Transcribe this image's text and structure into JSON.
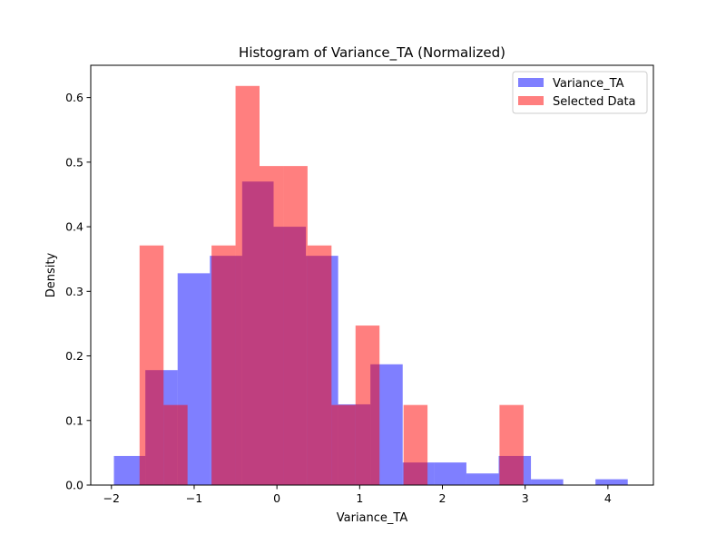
{
  "chart_data": {
    "type": "histogram",
    "title": "Histogram of Variance_TA (Normalized)",
    "xlabel": "Variance_TA",
    "ylabel": "Density",
    "xlim": [
      -2.25,
      4.55
    ],
    "ylim": [
      0,
      0.65
    ],
    "xticks": [
      -2,
      -1,
      0,
      1,
      2,
      3,
      4
    ],
    "yticks": [
      0.0,
      0.1,
      0.2,
      0.3,
      0.4,
      0.5,
      0.6
    ],
    "grid": false,
    "legend": "top-right",
    "series": [
      {
        "name": "Variance_TA",
        "color": "#0000ff",
        "opacity": 0.5,
        "bins": [
          {
            "x0": -1.97,
            "x1": -1.59,
            "value": 0.045
          },
          {
            "x0": -1.59,
            "x1": -1.2,
            "value": 0.178
          },
          {
            "x0": -1.2,
            "x1": -0.81,
            "value": 0.328
          },
          {
            "x0": -0.81,
            "x1": -0.42,
            "value": 0.355
          },
          {
            "x0": -0.42,
            "x1": -0.04,
            "value": 0.47
          },
          {
            "x0": -0.04,
            "x1": 0.35,
            "value": 0.4
          },
          {
            "x0": 0.35,
            "x1": 0.74,
            "value": 0.355
          },
          {
            "x0": 0.74,
            "x1": 1.13,
            "value": 0.125
          },
          {
            "x0": 1.13,
            "x1": 1.52,
            "value": 0.187
          },
          {
            "x0": 1.52,
            "x1": 1.9,
            "value": 0.035
          },
          {
            "x0": 1.9,
            "x1": 2.29,
            "value": 0.035
          },
          {
            "x0": 2.29,
            "x1": 2.68,
            "value": 0.018
          },
          {
            "x0": 2.68,
            "x1": 3.07,
            "value": 0.045
          },
          {
            "x0": 3.07,
            "x1": 3.46,
            "value": 0.009
          },
          {
            "x0": 3.46,
            "x1": 3.85,
            "value": 0.0
          },
          {
            "x0": 3.85,
            "x1": 4.24,
            "value": 0.009
          }
        ]
      },
      {
        "name": "Selected Data",
        "color": "#ff0000",
        "opacity": 0.5,
        "bins": [
          {
            "x0": -1.66,
            "x1": -1.37,
            "value": 0.371
          },
          {
            "x0": -1.37,
            "x1": -1.08,
            "value": 0.124
          },
          {
            "x0": -1.08,
            "x1": -0.79,
            "value": 0.0
          },
          {
            "x0": -0.79,
            "x1": -0.5,
            "value": 0.371
          },
          {
            "x0": -0.5,
            "x1": -0.21,
            "value": 0.618
          },
          {
            "x0": -0.21,
            "x1": 0.08,
            "value": 0.494
          },
          {
            "x0": 0.08,
            "x1": 0.37,
            "value": 0.494
          },
          {
            "x0": 0.37,
            "x1": 0.66,
            "value": 0.371
          },
          {
            "x0": 0.66,
            "x1": 0.95,
            "value": 0.124
          },
          {
            "x0": 0.95,
            "x1": 1.24,
            "value": 0.247
          },
          {
            "x0": 1.24,
            "x1": 1.53,
            "value": 0.0
          },
          {
            "x0": 1.53,
            "x1": 1.82,
            "value": 0.124
          },
          {
            "x0": 1.82,
            "x1": 2.11,
            "value": 0.0
          },
          {
            "x0": 2.11,
            "x1": 2.4,
            "value": 0.0
          },
          {
            "x0": 2.4,
            "x1": 2.69,
            "value": 0.0
          },
          {
            "x0": 2.69,
            "x1": 2.98,
            "value": 0.124
          }
        ]
      }
    ]
  }
}
